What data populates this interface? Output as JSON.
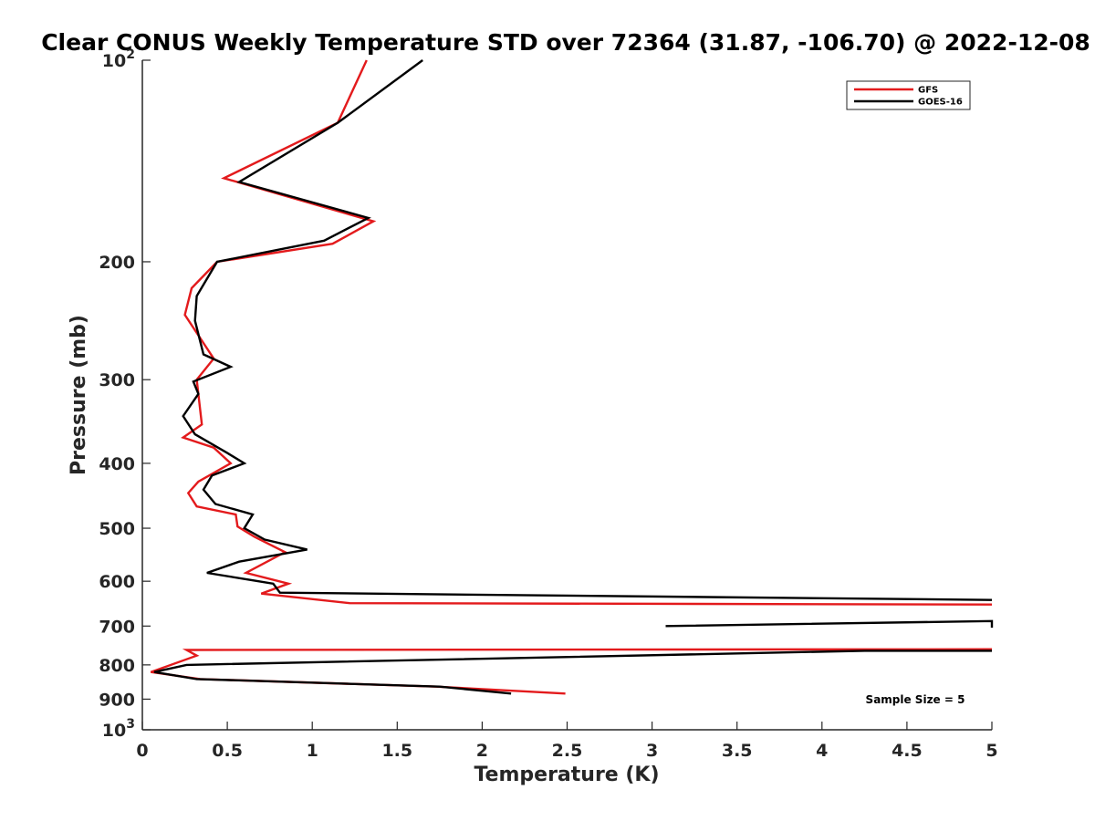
{
  "chart_data": {
    "type": "line",
    "title": "Clear CONUS Weekly Temperature STD over 72364 (31.87, -106.70) @ 2022-12-08",
    "xlabel": "Temperature (K)",
    "ylabel": "Pressure (mb)",
    "xlim": [
      0,
      5
    ],
    "ylim": [
      100,
      1000
    ],
    "y_scale": "log",
    "y_direction": "reversed",
    "grid": false,
    "legend_position": "top-right",
    "x_ticks": [
      "0",
      "0.5",
      "1",
      "1.5",
      "2",
      "2.5",
      "3",
      "3.5",
      "4",
      "4.5",
      "5"
    ],
    "y_ticks": [
      {
        "value": 100,
        "label": "10",
        "sup": "2"
      },
      {
        "value": 200,
        "label": "200",
        "sup": ""
      },
      {
        "value": 300,
        "label": "300",
        "sup": ""
      },
      {
        "value": 400,
        "label": "400",
        "sup": ""
      },
      {
        "value": 500,
        "label": "500",
        "sup": ""
      },
      {
        "value": 600,
        "label": "600",
        "sup": ""
      },
      {
        "value": 700,
        "label": "700",
        "sup": ""
      },
      {
        "value": 800,
        "label": "800",
        "sup": ""
      },
      {
        "value": 900,
        "label": "900",
        "sup": ""
      },
      {
        "value": 1000,
        "label": "10",
        "sup": "3"
      }
    ],
    "annotation": "Sample Size = 5",
    "series": [
      {
        "name": "GFS",
        "color": "#e31a1c",
        "points": [
          [
            1.32,
            100
          ],
          [
            1.15,
            124
          ],
          [
            0.48,
            150
          ],
          [
            1.36,
            174
          ],
          [
            1.12,
            188
          ],
          [
            0.44,
            200
          ],
          [
            0.29,
            219
          ],
          [
            0.25,
            240
          ],
          [
            0.42,
            279
          ],
          [
            0.32,
            300
          ],
          [
            0.35,
            350
          ],
          [
            0.24,
            366
          ],
          [
            0.42,
            379
          ],
          [
            0.52,
            400
          ],
          [
            0.33,
            426
          ],
          [
            0.27,
            443
          ],
          [
            0.32,
            464
          ],
          [
            0.55,
            477
          ],
          [
            0.56,
            497
          ],
          [
            0.66,
            515
          ],
          [
            0.84,
            543
          ],
          [
            0.61,
            583
          ],
          [
            0.86,
            605
          ],
          [
            0.7,
            626
          ],
          [
            1.22,
            647
          ],
          [
            5.0,
            650
          ]
        ]
      },
      {
        "name": "GOES-16",
        "color": "#000000",
        "points": [
          [
            1.65,
            100
          ],
          [
            1.15,
            124
          ],
          [
            0.57,
            152
          ],
          [
            1.33,
            172
          ],
          [
            1.07,
            186
          ],
          [
            0.44,
            200
          ],
          [
            0.32,
            225
          ],
          [
            0.31,
            245
          ],
          [
            0.36,
            275
          ],
          [
            0.52,
            287
          ],
          [
            0.3,
            302
          ],
          [
            0.33,
            315
          ],
          [
            0.24,
            340
          ],
          [
            0.31,
            362
          ],
          [
            0.5,
            386
          ],
          [
            0.6,
            400
          ],
          [
            0.41,
            417
          ],
          [
            0.36,
            438
          ],
          [
            0.43,
            460
          ],
          [
            0.65,
            477
          ],
          [
            0.6,
            500
          ],
          [
            0.72,
            520
          ],
          [
            0.97,
            538
          ],
          [
            0.57,
            561
          ],
          [
            0.38,
            583
          ],
          [
            0.77,
            605
          ],
          [
            0.81,
            624
          ],
          [
            5.0,
            640
          ]
        ]
      },
      {
        "name": "",
        "color": "#000000",
        "points": [
          [
            3.08,
            700
          ],
          [
            5.0,
            688
          ],
          [
            5.0,
            704
          ]
        ]
      },
      {
        "name": "",
        "color": "#e31a1c",
        "points": [
          [
            5.0,
            758
          ],
          [
            0.26,
            760
          ],
          [
            0.32,
            775
          ],
          [
            0.05,
            820
          ],
          [
            0.34,
            840
          ],
          [
            1.73,
            862
          ],
          [
            2.49,
            883
          ]
        ]
      },
      {
        "name": "",
        "color": "#000000",
        "points": [
          [
            5.0,
            762
          ],
          [
            4.25,
            762
          ],
          [
            0.26,
            800
          ],
          [
            0.07,
            820
          ],
          [
            0.32,
            840
          ],
          [
            1.75,
            862
          ],
          [
            2.17,
            883
          ]
        ]
      }
    ]
  }
}
